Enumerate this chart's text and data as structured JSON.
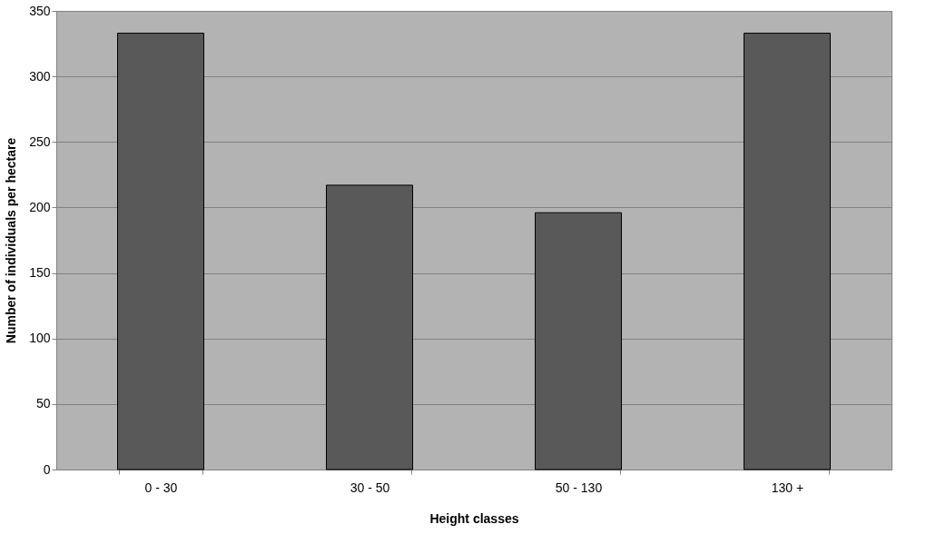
{
  "chart_data": {
    "type": "bar",
    "xlabel": "Height classes",
    "ylabel": "Number of individuals per hectare",
    "categories": [
      "0 - 30",
      "30 - 50",
      "50 - 130",
      "130  +"
    ],
    "values": [
      333,
      217,
      196,
      333
    ],
    "color": "#595959",
    "ylim": [
      0,
      350
    ],
    "yticks": [
      0,
      50,
      100,
      150,
      200,
      250,
      300,
      350
    ],
    "grid": "y"
  }
}
